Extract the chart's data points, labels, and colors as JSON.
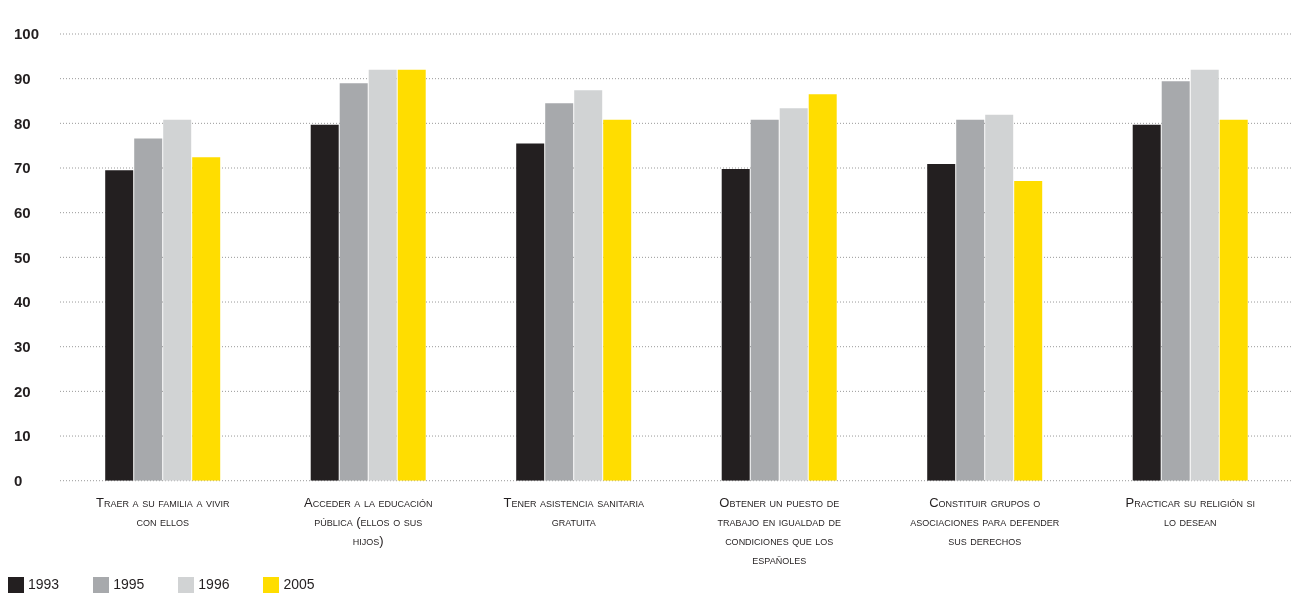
{
  "chart_data": {
    "type": "bar",
    "categories": [
      "Traer a su familia a vivir con ellos",
      "Acceder a la educación pública (ellos o sus hijos)",
      "Tener asistencia sanitaria gratuita",
      "Obtener un puesto de trabajo en igualdad de condiciones que los españoles",
      "Constituir grupos o asociaciones para defender sus derechos",
      "Practicar su religión si lo desean"
    ],
    "series": [
      {
        "name": "1993",
        "color": "#231f20",
        "values": [
          69.5,
          79.7,
          75.5,
          69.8,
          70.9,
          79.7
        ]
      },
      {
        "name": "1995",
        "color": "#a7a9ac",
        "values": [
          76.6,
          89,
          84.5,
          80.8,
          80.8,
          89.4
        ]
      },
      {
        "name": "1996",
        "color": "#d1d3d4",
        "values": [
          80.8,
          92,
          87.4,
          83.4,
          81.9,
          92
        ]
      },
      {
        "name": "2005",
        "color": "#ffdd00",
        "values": [
          72.4,
          92,
          80.8,
          86.5,
          67.1,
          80.8
        ]
      }
    ],
    "ylim": [
      0,
      100
    ],
    "yticks": [
      0,
      10,
      20,
      30,
      40,
      50,
      60,
      70,
      80,
      90,
      100
    ],
    "grid": "y",
    "legend": "bottom left"
  }
}
